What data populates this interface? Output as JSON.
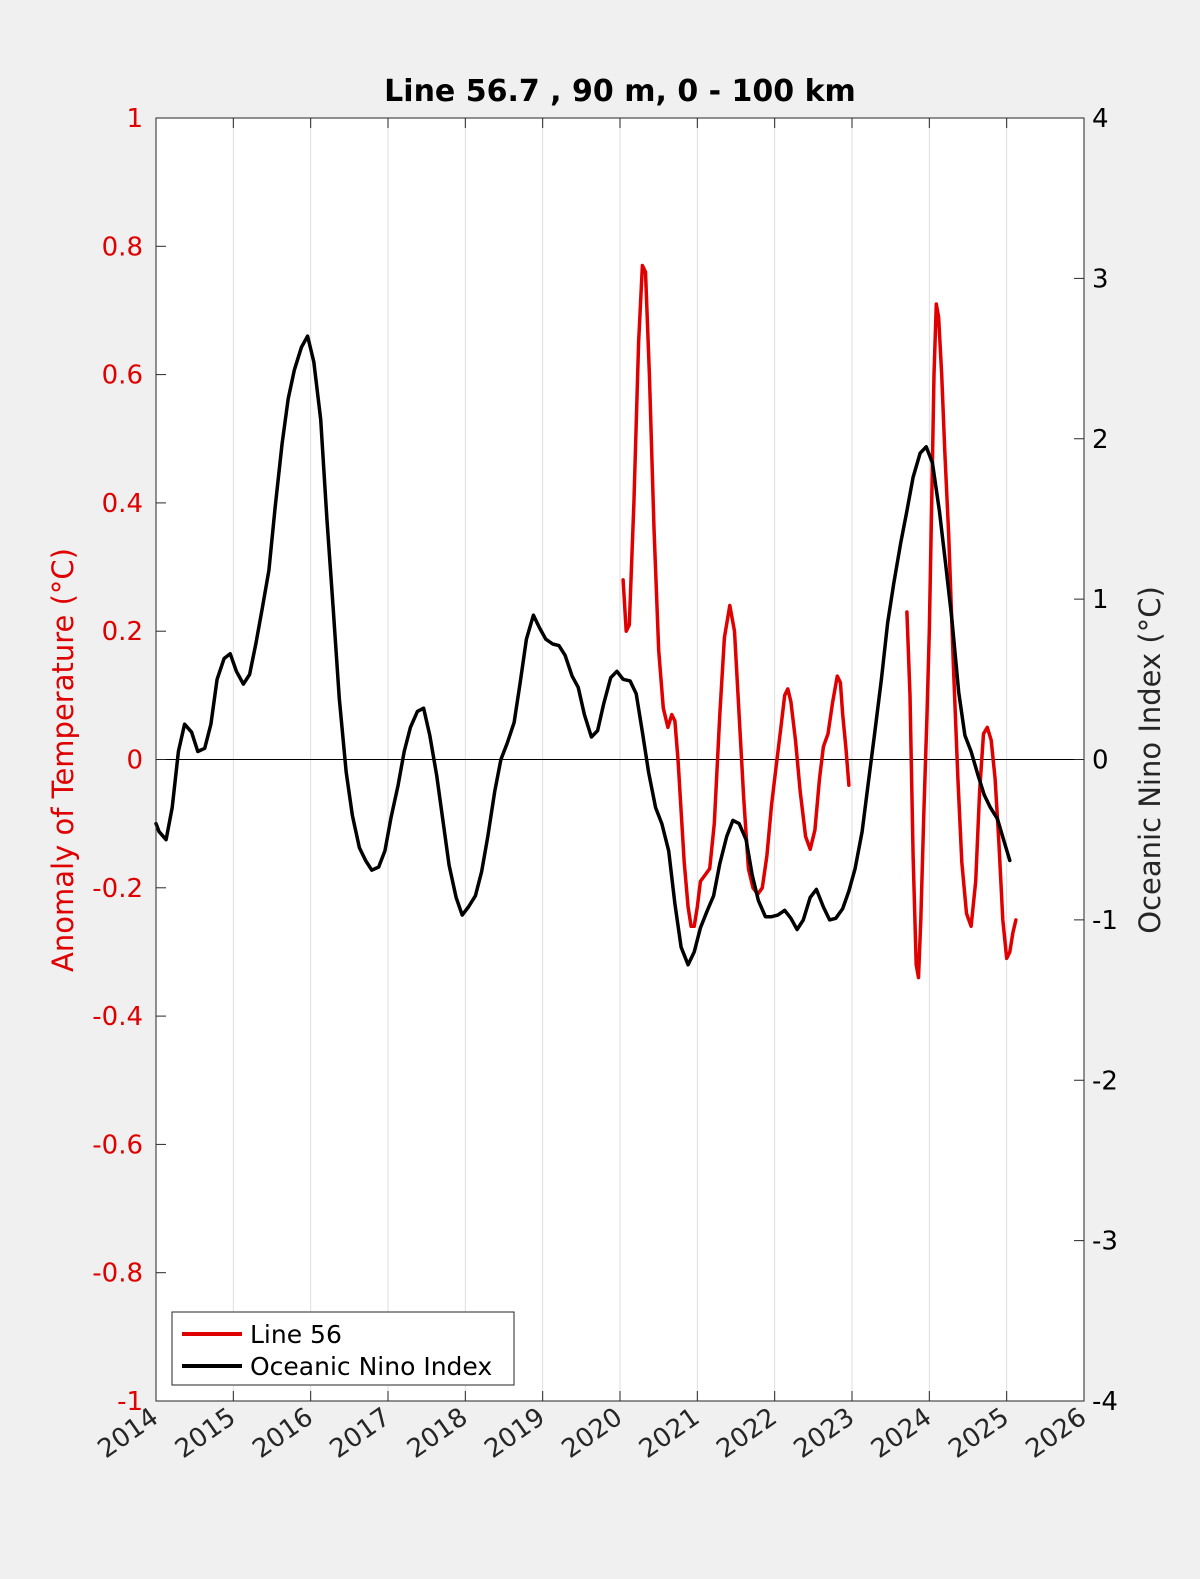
{
  "chart_data": {
    "type": "line",
    "title": "Line 56.7 , 90 m, 0 - 100 km",
    "xlabel": "",
    "ylabel_left": "Anomaly of Temperature (°C)",
    "ylabel_right": "Oceanic Nino Index (°C)",
    "xlim": [
      2014,
      2026
    ],
    "ylim_left": [
      -1,
      1
    ],
    "ylim_right": [
      -4,
      4
    ],
    "x_ticks": [
      "2014",
      "2015",
      "2016",
      "2017",
      "2018",
      "2019",
      "2020",
      "2021",
      "2022",
      "2023",
      "2024",
      "2025",
      "2026"
    ],
    "y_ticks_left": [
      "1",
      "0.8",
      "0.6",
      "0.4",
      "0.2",
      "0",
      "-0.2",
      "-0.4",
      "-0.6",
      "-0.8",
      "-1"
    ],
    "y_ticks_right": [
      "4",
      "3",
      "2",
      "1",
      "0",
      "-1",
      "-2",
      "-3",
      "-4"
    ],
    "grid": "vertical",
    "legend_position": "bottom-left",
    "colors": {
      "line56": "#e00000",
      "oni": "#000000",
      "left_axis": "#e00000",
      "right_axis": "#000000"
    },
    "series": [
      {
        "name": "Line 56",
        "axis": "left",
        "segments": [
          [
            [
              2020.04,
              0.28
            ],
            [
              2020.08,
              0.2
            ],
            [
              2020.12,
              0.21
            ],
            [
              2020.18,
              0.4
            ],
            [
              2020.24,
              0.65
            ],
            [
              2020.29,
              0.77
            ],
            [
              2020.33,
              0.76
            ],
            [
              2020.38,
              0.6
            ],
            [
              2020.44,
              0.36
            ],
            [
              2020.5,
              0.17
            ],
            [
              2020.56,
              0.08
            ],
            [
              2020.62,
              0.05
            ],
            [
              2020.67,
              0.07
            ],
            [
              2020.71,
              0.06
            ],
            [
              2020.75,
              0.0
            ],
            [
              2020.79,
              -0.08
            ],
            [
              2020.83,
              -0.16
            ],
            [
              2020.88,
              -0.23
            ],
            [
              2020.92,
              -0.26
            ],
            [
              2020.96,
              -0.26
            ],
            [
              2021.0,
              -0.23
            ],
            [
              2021.04,
              -0.19
            ],
            [
              2021.1,
              -0.18
            ],
            [
              2021.16,
              -0.17
            ],
            [
              2021.22,
              -0.1
            ],
            [
              2021.29,
              0.07
            ],
            [
              2021.35,
              0.19
            ],
            [
              2021.42,
              0.24
            ],
            [
              2021.48,
              0.2
            ],
            [
              2021.54,
              0.07
            ],
            [
              2021.6,
              -0.06
            ],
            [
              2021.66,
              -0.17
            ],
            [
              2021.72,
              -0.2
            ],
            [
              2021.78,
              -0.21
            ],
            [
              2021.84,
              -0.2
            ],
            [
              2021.9,
              -0.15
            ],
            [
              2021.96,
              -0.07
            ],
            [
              2022.02,
              -0.01
            ],
            [
              2022.08,
              0.05
            ],
            [
              2022.13,
              0.1
            ],
            [
              2022.17,
              0.11
            ],
            [
              2022.21,
              0.09
            ],
            [
              2022.27,
              0.03
            ],
            [
              2022.33,
              -0.05
            ],
            [
              2022.4,
              -0.12
            ],
            [
              2022.46,
              -0.14
            ],
            [
              2022.52,
              -0.11
            ],
            [
              2022.58,
              -0.03
            ],
            [
              2022.63,
              0.02
            ],
            [
              2022.69,
              0.04
            ],
            [
              2022.75,
              0.09
            ],
            [
              2022.81,
              0.13
            ],
            [
              2022.85,
              0.12
            ],
            [
              2022.88,
              0.07
            ],
            [
              2022.92,
              0.02
            ],
            [
              2022.96,
              -0.04
            ]
          ],
          [
            [
              2023.71,
              0.23
            ],
            [
              2023.75,
              0.1
            ],
            [
              2023.79,
              -0.15
            ],
            [
              2023.83,
              -0.32
            ],
            [
              2023.86,
              -0.34
            ],
            [
              2023.89,
              -0.25
            ],
            [
              2023.93,
              -0.08
            ],
            [
              2023.97,
              0.07
            ],
            [
              2024.0,
              0.2
            ],
            [
              2024.03,
              0.4
            ],
            [
              2024.06,
              0.6
            ],
            [
              2024.09,
              0.71
            ],
            [
              2024.12,
              0.69
            ],
            [
              2024.16,
              0.6
            ],
            [
              2024.2,
              0.48
            ],
            [
              2024.25,
              0.35
            ],
            [
              2024.31,
              0.15
            ],
            [
              2024.37,
              -0.03
            ],
            [
              2024.42,
              -0.16
            ],
            [
              2024.48,
              -0.24
            ],
            [
              2024.54,
              -0.26
            ],
            [
              2024.6,
              -0.19
            ],
            [
              2024.65,
              -0.05
            ],
            [
              2024.7,
              0.04
            ],
            [
              2024.75,
              0.05
            ],
            [
              2024.8,
              0.03
            ],
            [
              2024.85,
              -0.03
            ],
            [
              2024.9,
              -0.13
            ],
            [
              2024.95,
              -0.25
            ],
            [
              2025.0,
              -0.31
            ],
            [
              2025.04,
              -0.3
            ],
            [
              2025.08,
              -0.27
            ],
            [
              2025.12,
              -0.25
            ]
          ]
        ]
      },
      {
        "name": "Oceanic Nino Index",
        "axis": "right",
        "values": [
          [
            2014.0,
            -0.4
          ],
          [
            2014.04,
            -0.45
          ],
          [
            2014.13,
            -0.5
          ],
          [
            2014.21,
            -0.3
          ],
          [
            2014.29,
            0.05
          ],
          [
            2014.37,
            0.22
          ],
          [
            2014.46,
            0.17
          ],
          [
            2014.54,
            0.05
          ],
          [
            2014.63,
            0.07
          ],
          [
            2014.71,
            0.22
          ],
          [
            2014.79,
            0.5
          ],
          [
            2014.88,
            0.63
          ],
          [
            2014.96,
            0.66
          ],
          [
            2015.04,
            0.55
          ],
          [
            2015.13,
            0.47
          ],
          [
            2015.21,
            0.53
          ],
          [
            2015.29,
            0.72
          ],
          [
            2015.37,
            0.93
          ],
          [
            2015.46,
            1.18
          ],
          [
            2015.54,
            1.57
          ],
          [
            2015.63,
            1.97
          ],
          [
            2015.71,
            2.25
          ],
          [
            2015.79,
            2.43
          ],
          [
            2015.88,
            2.57
          ],
          [
            2015.96,
            2.64
          ],
          [
            2016.04,
            2.48
          ],
          [
            2016.13,
            2.12
          ],
          [
            2016.21,
            1.5
          ],
          [
            2016.29,
            0.95
          ],
          [
            2016.37,
            0.38
          ],
          [
            2016.46,
            -0.08
          ],
          [
            2016.54,
            -0.35
          ],
          [
            2016.63,
            -0.55
          ],
          [
            2016.71,
            -0.63
          ],
          [
            2016.79,
            -0.69
          ],
          [
            2016.88,
            -0.67
          ],
          [
            2016.96,
            -0.57
          ],
          [
            2017.04,
            -0.36
          ],
          [
            2017.13,
            -0.16
          ],
          [
            2017.21,
            0.05
          ],
          [
            2017.29,
            0.2
          ],
          [
            2017.38,
            0.3
          ],
          [
            2017.46,
            0.32
          ],
          [
            2017.54,
            0.15
          ],
          [
            2017.63,
            -0.1
          ],
          [
            2017.71,
            -0.38
          ],
          [
            2017.79,
            -0.66
          ],
          [
            2017.88,
            -0.86
          ],
          [
            2017.96,
            -0.97
          ],
          [
            2018.04,
            -0.92
          ],
          [
            2018.13,
            -0.85
          ],
          [
            2018.21,
            -0.7
          ],
          [
            2018.29,
            -0.48
          ],
          [
            2018.38,
            -0.2
          ],
          [
            2018.46,
            0.0
          ],
          [
            2018.54,
            0.1
          ],
          [
            2018.63,
            0.23
          ],
          [
            2018.71,
            0.48
          ],
          [
            2018.79,
            0.75
          ],
          [
            2018.88,
            0.9
          ],
          [
            2018.96,
            0.82
          ],
          [
            2019.04,
            0.75
          ],
          [
            2019.13,
            0.72
          ],
          [
            2019.21,
            0.71
          ],
          [
            2019.29,
            0.65
          ],
          [
            2019.38,
            0.52
          ],
          [
            2019.46,
            0.45
          ],
          [
            2019.54,
            0.28
          ],
          [
            2019.63,
            0.14
          ],
          [
            2019.71,
            0.18
          ],
          [
            2019.79,
            0.35
          ],
          [
            2019.88,
            0.51
          ],
          [
            2019.96,
            0.55
          ],
          [
            2020.04,
            0.5
          ],
          [
            2020.13,
            0.49
          ],
          [
            2020.21,
            0.41
          ],
          [
            2020.29,
            0.17
          ],
          [
            2020.37,
            -0.08
          ],
          [
            2020.46,
            -0.3
          ],
          [
            2020.54,
            -0.4
          ],
          [
            2020.63,
            -0.57
          ],
          [
            2020.71,
            -0.9
          ],
          [
            2020.79,
            -1.17
          ],
          [
            2020.88,
            -1.28
          ],
          [
            2020.96,
            -1.2
          ],
          [
            2021.04,
            -1.05
          ],
          [
            2021.13,
            -0.94
          ],
          [
            2021.21,
            -0.85
          ],
          [
            2021.29,
            -0.65
          ],
          [
            2021.38,
            -0.48
          ],
          [
            2021.46,
            -0.38
          ],
          [
            2021.54,
            -0.4
          ],
          [
            2021.63,
            -0.5
          ],
          [
            2021.71,
            -0.72
          ],
          [
            2021.79,
            -0.88
          ],
          [
            2021.88,
            -0.98
          ],
          [
            2021.96,
            -0.98
          ],
          [
            2022.04,
            -0.97
          ],
          [
            2022.13,
            -0.94
          ],
          [
            2022.21,
            -0.99
          ],
          [
            2022.29,
            -1.06
          ],
          [
            2022.37,
            -1.0
          ],
          [
            2022.46,
            -0.86
          ],
          [
            2022.54,
            -0.81
          ],
          [
            2022.63,
            -0.92
          ],
          [
            2022.71,
            -1.0
          ],
          [
            2022.79,
            -0.99
          ],
          [
            2022.88,
            -0.93
          ],
          [
            2022.96,
            -0.82
          ],
          [
            2023.04,
            -0.68
          ],
          [
            2023.13,
            -0.45
          ],
          [
            2023.21,
            -0.15
          ],
          [
            2023.29,
            0.15
          ],
          [
            2023.38,
            0.5
          ],
          [
            2023.46,
            0.85
          ],
          [
            2023.54,
            1.1
          ],
          [
            2023.63,
            1.35
          ],
          [
            2023.71,
            1.55
          ],
          [
            2023.79,
            1.76
          ],
          [
            2023.88,
            1.91
          ],
          [
            2023.96,
            1.95
          ],
          [
            2024.04,
            1.85
          ],
          [
            2024.13,
            1.55
          ],
          [
            2024.21,
            1.22
          ],
          [
            2024.29,
            0.88
          ],
          [
            2024.38,
            0.42
          ],
          [
            2024.46,
            0.15
          ],
          [
            2024.54,
            0.05
          ],
          [
            2024.63,
            -0.1
          ],
          [
            2024.71,
            -0.22
          ],
          [
            2024.79,
            -0.3
          ],
          [
            2024.88,
            -0.37
          ],
          [
            2024.96,
            -0.5
          ],
          [
            2025.04,
            -0.63
          ]
        ]
      }
    ]
  }
}
